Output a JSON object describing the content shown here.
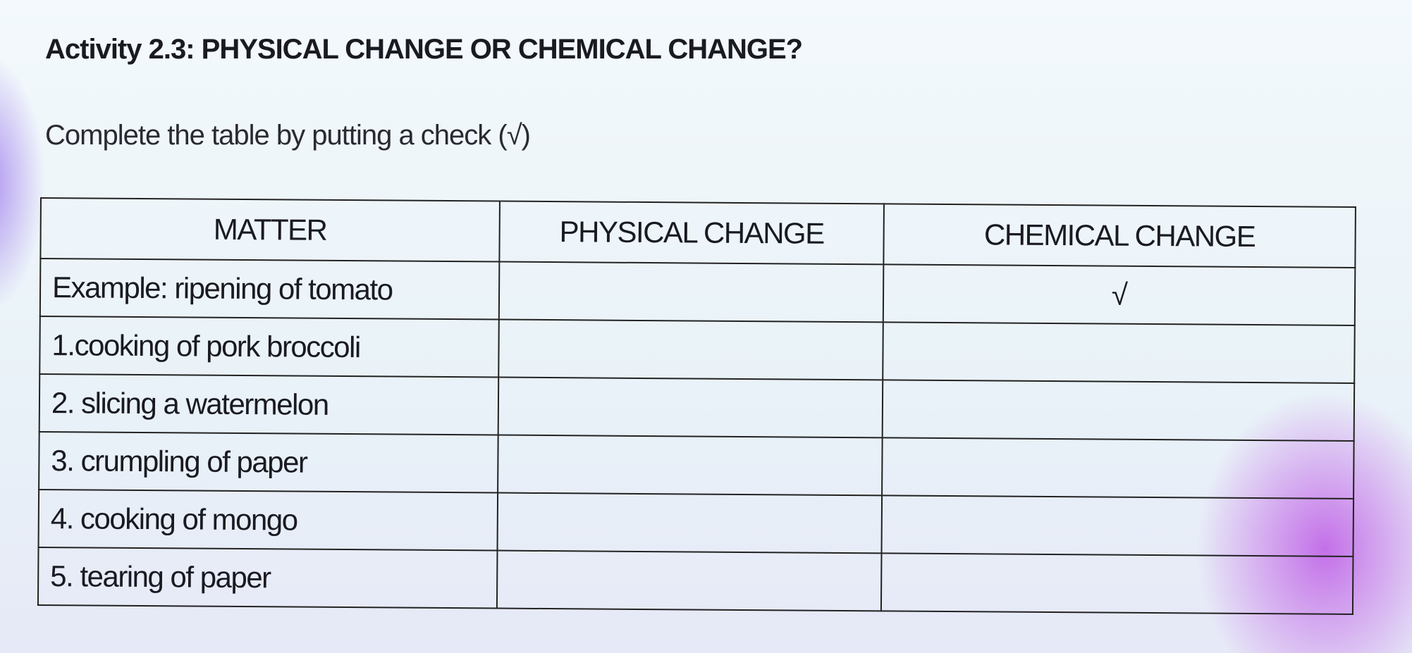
{
  "header": {
    "title": "Activity 2.3: PHYSICAL CHANGE OR CHEMICAL CHANGE?",
    "instruction": "Complete the table by putting a check (√)"
  },
  "table": {
    "columns": [
      "MATTER",
      "PHYSICAL CHANGE",
      "CHEMICAL CHANGE"
    ],
    "rows": [
      {
        "matter": "Example: ripening of tomato",
        "chemical_change": "√"
      },
      {
        "matter": "1.cooking of pork broccoli"
      },
      {
        "matter": "2. slicing a watermelon"
      },
      {
        "matter": "3. crumpling of paper"
      },
      {
        "matter": "4. cooking of mongo"
      },
      {
        "matter": "5. tearing of paper"
      }
    ]
  }
}
